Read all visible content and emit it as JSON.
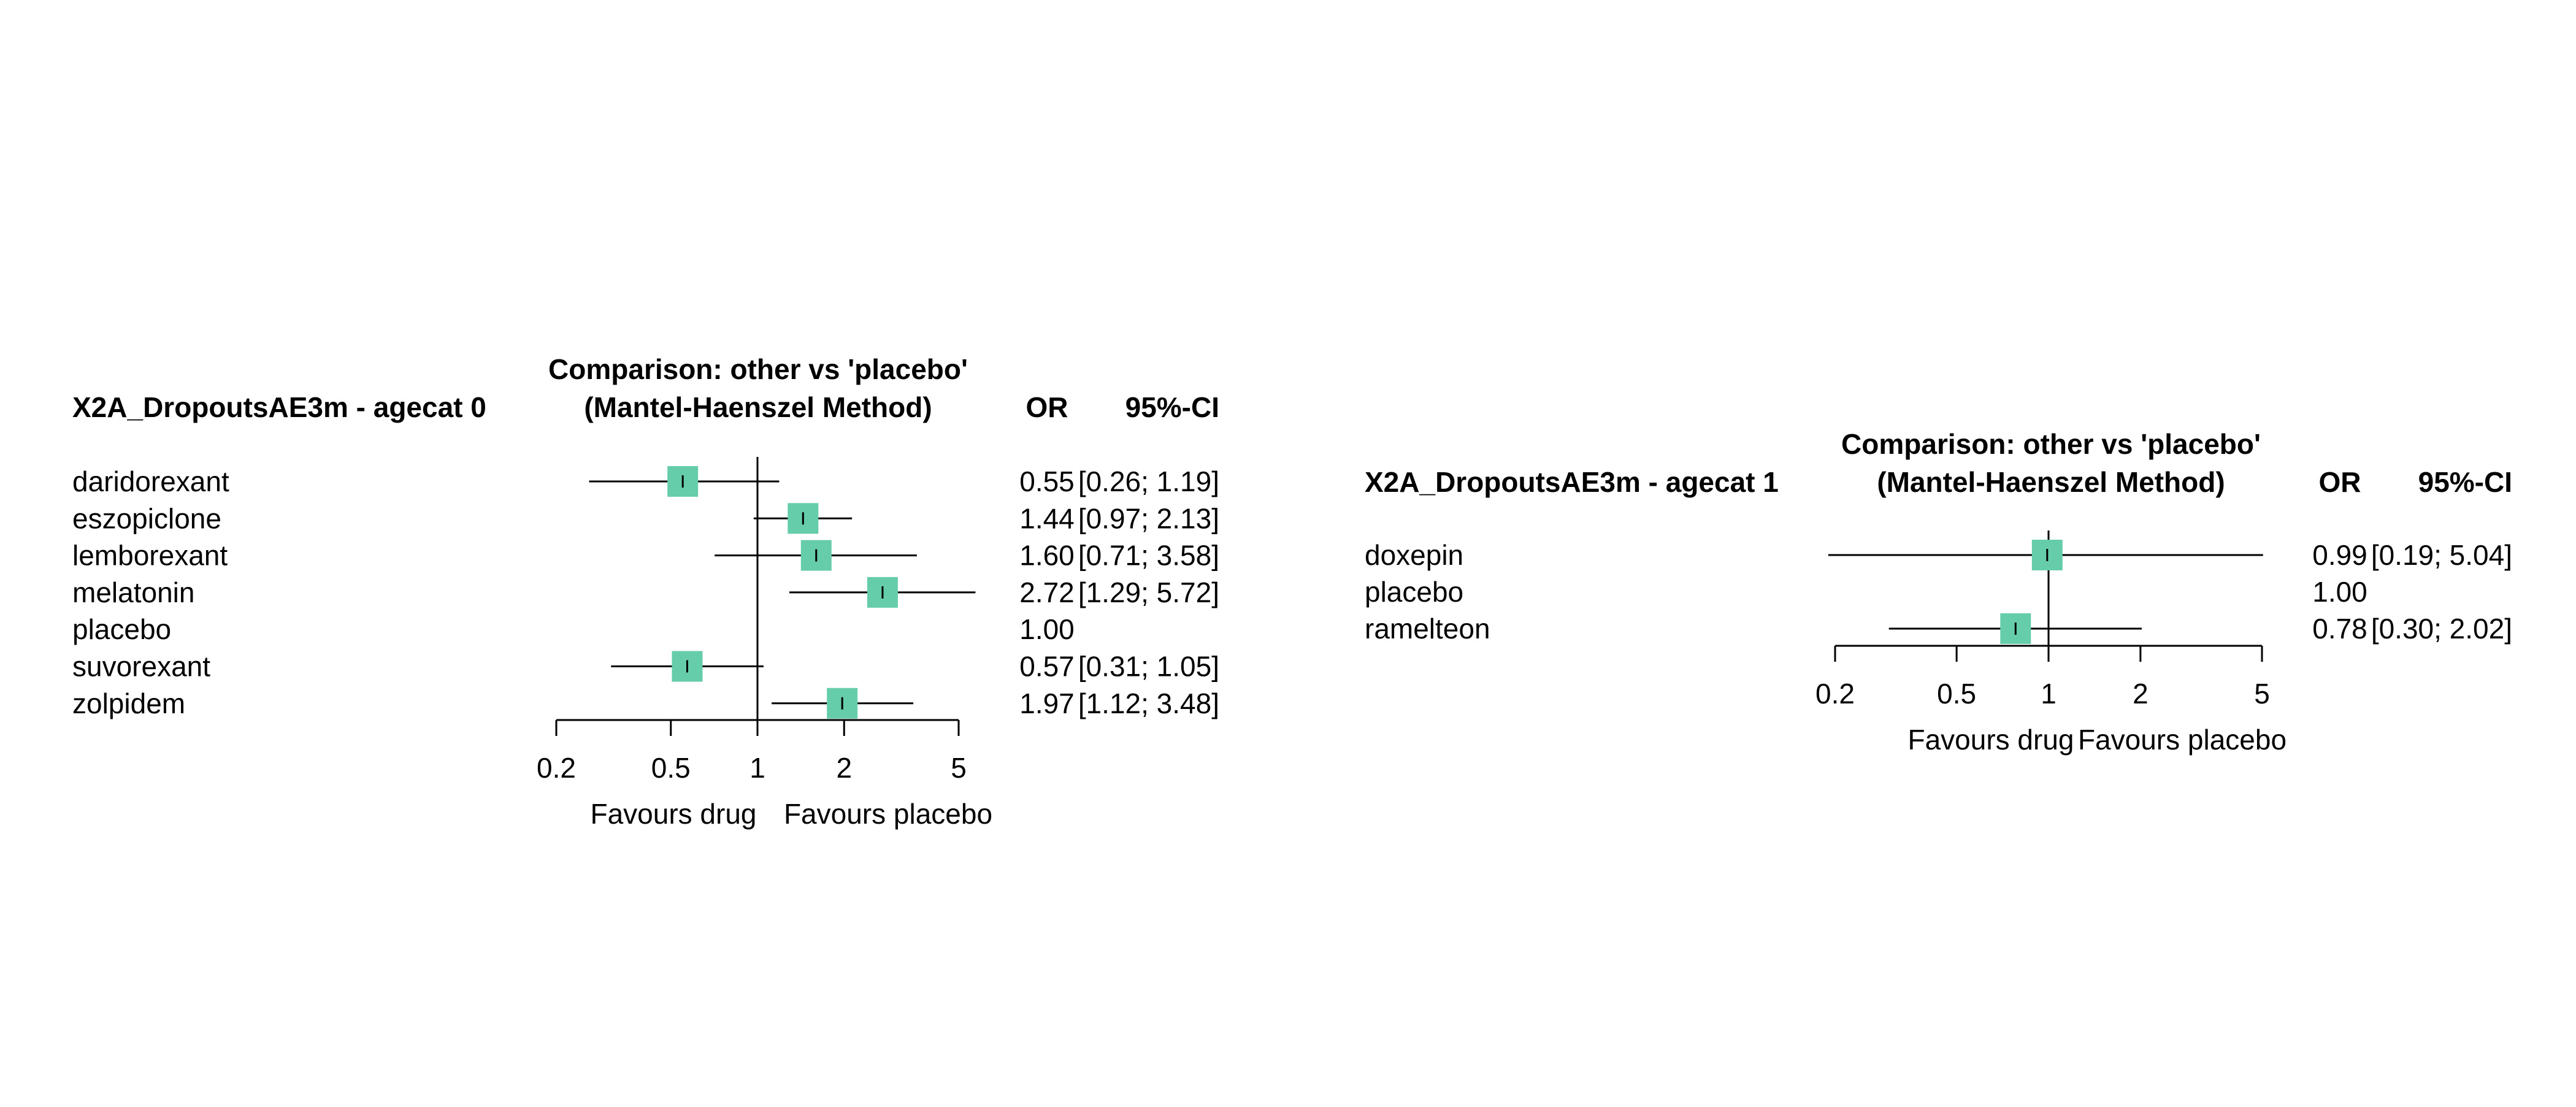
{
  "chart_data": [
    {
      "type": "forest",
      "outcome_label": "X2A_DropoutsAE3m - agecat 0",
      "comparison_title": "Comparison: other vs 'placebo'",
      "method_label": "(Mantel-Haenszel Method)",
      "col_or": "OR",
      "col_ci": "95%-CI",
      "x_ticks": [
        "0.2",
        "0.5",
        "1",
        "2",
        "5"
      ],
      "x_tick_values": [
        0.2,
        0.5,
        1,
        2,
        5
      ],
      "xlim": [
        0.2,
        5
      ],
      "log_scale": true,
      "reference_value": 1,
      "favours_left": "Favours drug",
      "favours_right": "Favours placebo",
      "rows": [
        {
          "label": "daridorexant",
          "or": 0.55,
          "lower": 0.26,
          "upper": 1.19,
          "or_text": "0.55",
          "ci_text": "[0.26; 1.19]"
        },
        {
          "label": "eszopiclone",
          "or": 1.44,
          "lower": 0.97,
          "upper": 2.13,
          "or_text": "1.44",
          "ci_text": "[0.97; 2.13]"
        },
        {
          "label": "lemborexant",
          "or": 1.6,
          "lower": 0.71,
          "upper": 3.58,
          "or_text": "1.60",
          "ci_text": "[0.71; 3.58]"
        },
        {
          "label": "melatonin",
          "or": 2.72,
          "lower": 1.29,
          "upper": 5.72,
          "or_text": "2.72",
          "ci_text": "[1.29; 5.72]"
        },
        {
          "label": "placebo",
          "or": 1.0,
          "lower": null,
          "upper": null,
          "or_text": "1.00",
          "ci_text": ""
        },
        {
          "label": "suvorexant",
          "or": 0.57,
          "lower": 0.31,
          "upper": 1.05,
          "or_text": "0.57",
          "ci_text": "[0.31; 1.05]"
        },
        {
          "label": "zolpidem",
          "or": 1.97,
          "lower": 1.12,
          "upper": 3.48,
          "or_text": "1.97",
          "ci_text": "[1.12; 3.48]"
        }
      ]
    },
    {
      "type": "forest",
      "outcome_label": "X2A_DropoutsAE3m - agecat 1",
      "comparison_title": "Comparison: other vs 'placebo'",
      "method_label": "(Mantel-Haenszel Method)",
      "col_or": "OR",
      "col_ci": "95%-CI",
      "x_ticks": [
        "0.2",
        "0.5",
        "1",
        "2",
        "5"
      ],
      "x_tick_values": [
        0.2,
        0.5,
        1,
        2,
        5
      ],
      "xlim": [
        0.2,
        5
      ],
      "log_scale": true,
      "reference_value": 1,
      "favours_left": "Favours drug",
      "favours_right": "Favours placebo",
      "rows": [
        {
          "label": "doxepin",
          "or": 0.99,
          "lower": 0.19,
          "upper": 5.04,
          "or_text": "0.99",
          "ci_text": "[0.19; 5.04]"
        },
        {
          "label": "placebo",
          "or": 1.0,
          "lower": null,
          "upper": null,
          "or_text": "1.00",
          "ci_text": ""
        },
        {
          "label": "ramelteon",
          "or": 0.78,
          "lower": 0.3,
          "upper": 2.02,
          "or_text": "0.78",
          "ci_text": "[0.30; 2.02]"
        }
      ]
    }
  ],
  "colors": {
    "square": "#66cdaa",
    "line": "#000000"
  }
}
